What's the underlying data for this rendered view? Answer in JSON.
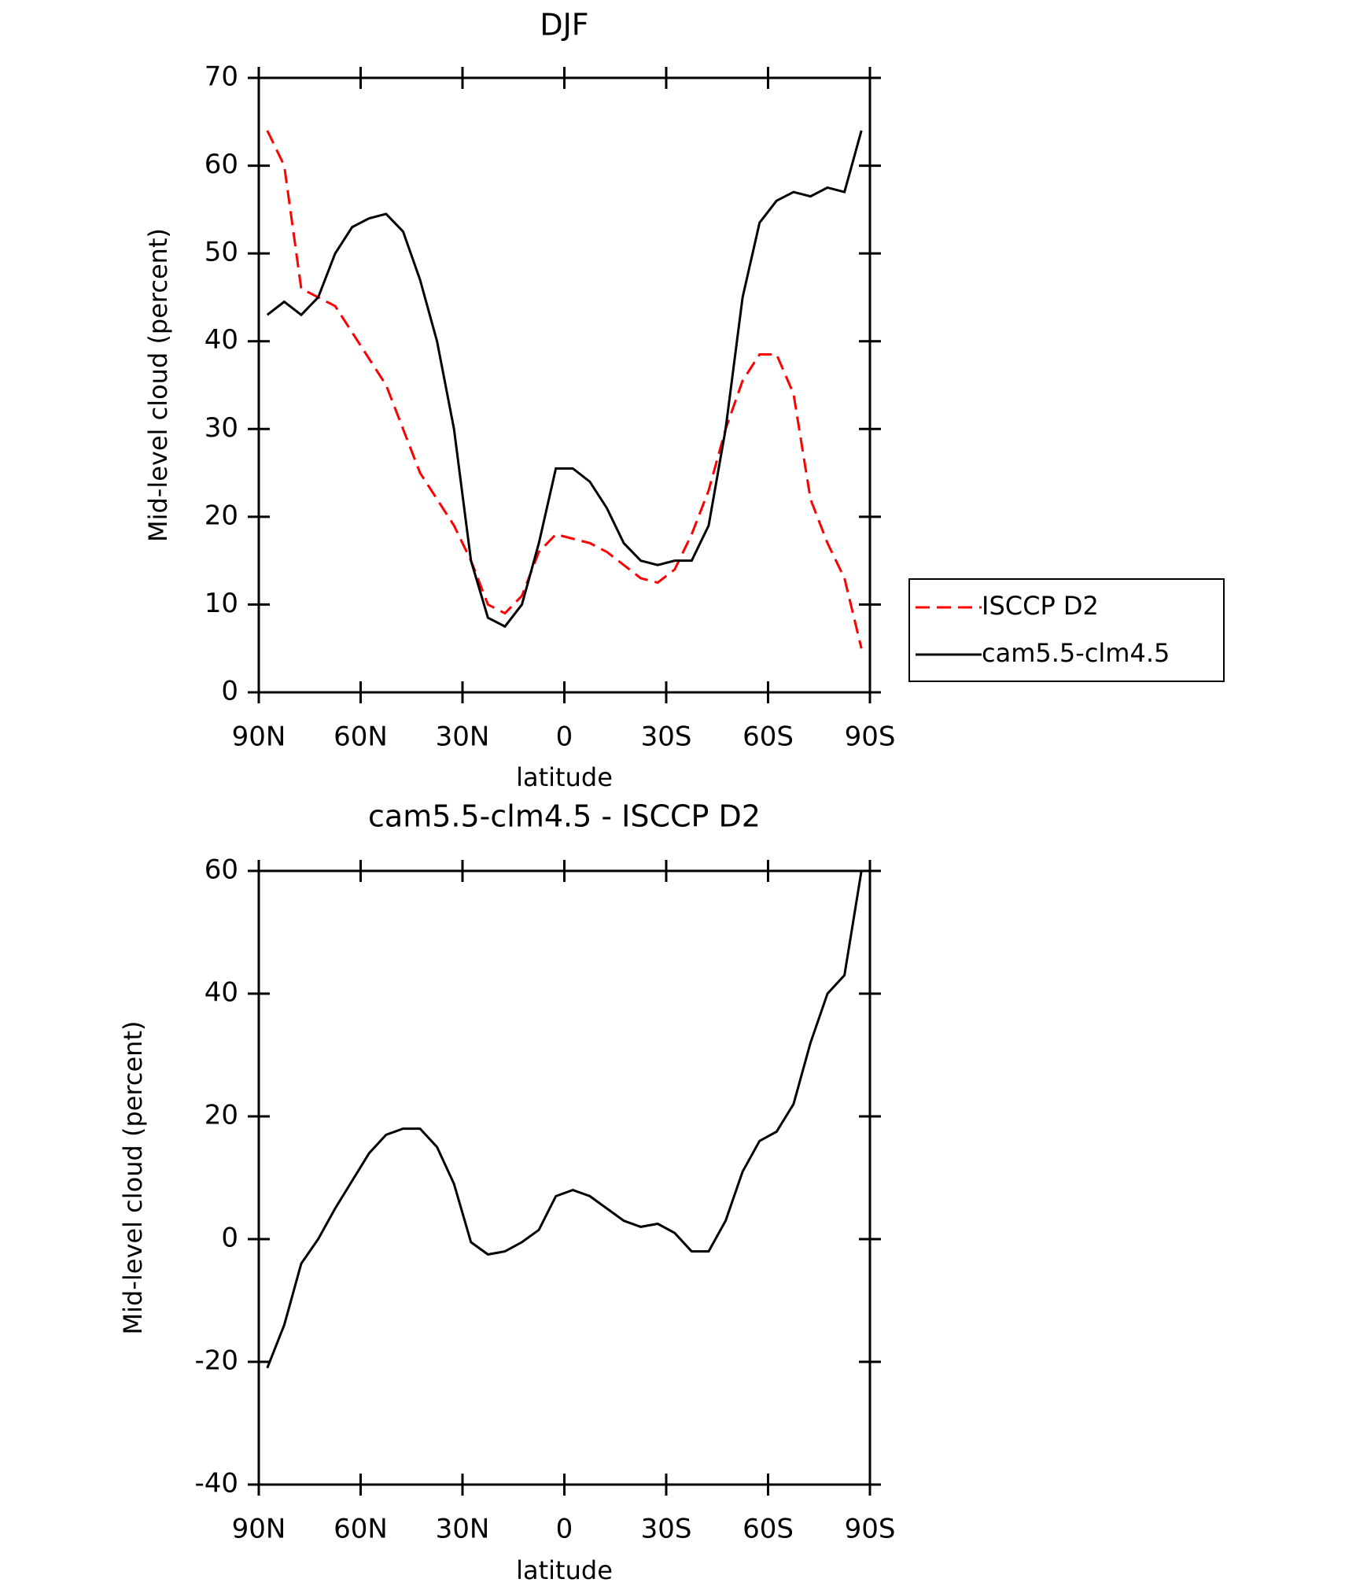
{
  "chart_data": [
    {
      "type": "line",
      "title": "DJF",
      "xlabel": "latitude",
      "ylabel": "Mid-level cloud (percent)",
      "xlim": [
        90,
        -90
      ],
      "xticks": [
        {
          "value": 90,
          "label": "90N"
        },
        {
          "value": 60,
          "label": "60N"
        },
        {
          "value": 30,
          "label": "30N"
        },
        0,
        {
          "value": -30,
          "label": "30S"
        },
        {
          "value": -60,
          "label": "60S"
        },
        {
          "value": -90,
          "label": "90S"
        }
      ],
      "ylim": [
        0,
        70
      ],
      "yticks": [
        0,
        10,
        20,
        30,
        40,
        50,
        60,
        70
      ],
      "legend": "right",
      "x": [
        87.5,
        82.5,
        77.5,
        72.5,
        67.5,
        62.5,
        57.5,
        52.5,
        47.5,
        42.5,
        37.5,
        32.5,
        27.5,
        22.5,
        17.5,
        12.5,
        7.5,
        2.5,
        -2.5,
        -7.5,
        -12.5,
        -17.5,
        -22.5,
        -27.5,
        -32.5,
        -37.5,
        -42.5,
        -47.5,
        -52.5,
        -57.5,
        -62.5,
        -67.5,
        -72.5,
        -77.5,
        -82.5,
        -87.5
      ],
      "series": [
        {
          "name": "ISCCP D2",
          "color": "#ff0000",
          "dash": true,
          "values": [
            64,
            60,
            46,
            45,
            44,
            41,
            38,
            35,
            30,
            25,
            22,
            19,
            15,
            10,
            9,
            11,
            16,
            18,
            17.5,
            17,
            16,
            14.5,
            13,
            12.5,
            14,
            18,
            23,
            30,
            35.5,
            38.5,
            38.5,
            34,
            22,
            17,
            13,
            5
          ]
        },
        {
          "name": "cam5.5-clm4.5",
          "color": "#000000",
          "dash": false,
          "values": [
            43,
            44.5,
            43,
            45,
            50,
            53,
            54,
            54.5,
            52.5,
            47,
            40,
            30,
            15,
            8.5,
            7.5,
            10,
            17,
            25.5,
            25.5,
            24,
            21,
            17,
            15,
            14.5,
            15,
            15,
            19,
            30,
            45,
            53.5,
            56,
            57,
            56.5,
            57.5,
            57,
            64
          ]
        }
      ]
    },
    {
      "type": "line",
      "title": "cam5.5-clm4.5 - ISCCP D2",
      "xlabel": "latitude",
      "ylabel": "Mid-level cloud (percent)",
      "xlim": [
        90,
        -90
      ],
      "xticks": [
        {
          "value": 90,
          "label": "90N"
        },
        {
          "value": 60,
          "label": "60N"
        },
        {
          "value": 30,
          "label": "30N"
        },
        0,
        {
          "value": -30,
          "label": "30S"
        },
        {
          "value": -60,
          "label": "60S"
        },
        {
          "value": -90,
          "label": "90S"
        }
      ],
      "ylim": [
        -40,
        60
      ],
      "yticks": [
        -40,
        -20,
        0,
        20,
        40,
        60
      ],
      "x": [
        87.5,
        82.5,
        77.5,
        72.5,
        67.5,
        62.5,
        57.5,
        52.5,
        47.5,
        42.5,
        37.5,
        32.5,
        27.5,
        22.5,
        17.5,
        12.5,
        7.5,
        2.5,
        -2.5,
        -7.5,
        -12.5,
        -17.5,
        -22.5,
        -27.5,
        -32.5,
        -37.5,
        -42.5,
        -47.5,
        -52.5,
        -57.5,
        -62.5,
        -67.5,
        -72.5,
        -77.5,
        -82.5,
        -87.5
      ],
      "series": [
        {
          "color": "#000000",
          "dash": false,
          "values": [
            -21,
            -14,
            -4,
            0,
            5,
            9.5,
            14,
            17,
            18,
            18,
            15,
            9,
            -0.5,
            -2.5,
            -2,
            -0.5,
            1.5,
            7,
            8,
            7,
            5,
            3,
            2,
            2.5,
            1,
            -2,
            -2,
            3,
            11,
            16,
            17.5,
            22,
            32,
            40,
            43,
            60
          ]
        }
      ]
    }
  ]
}
